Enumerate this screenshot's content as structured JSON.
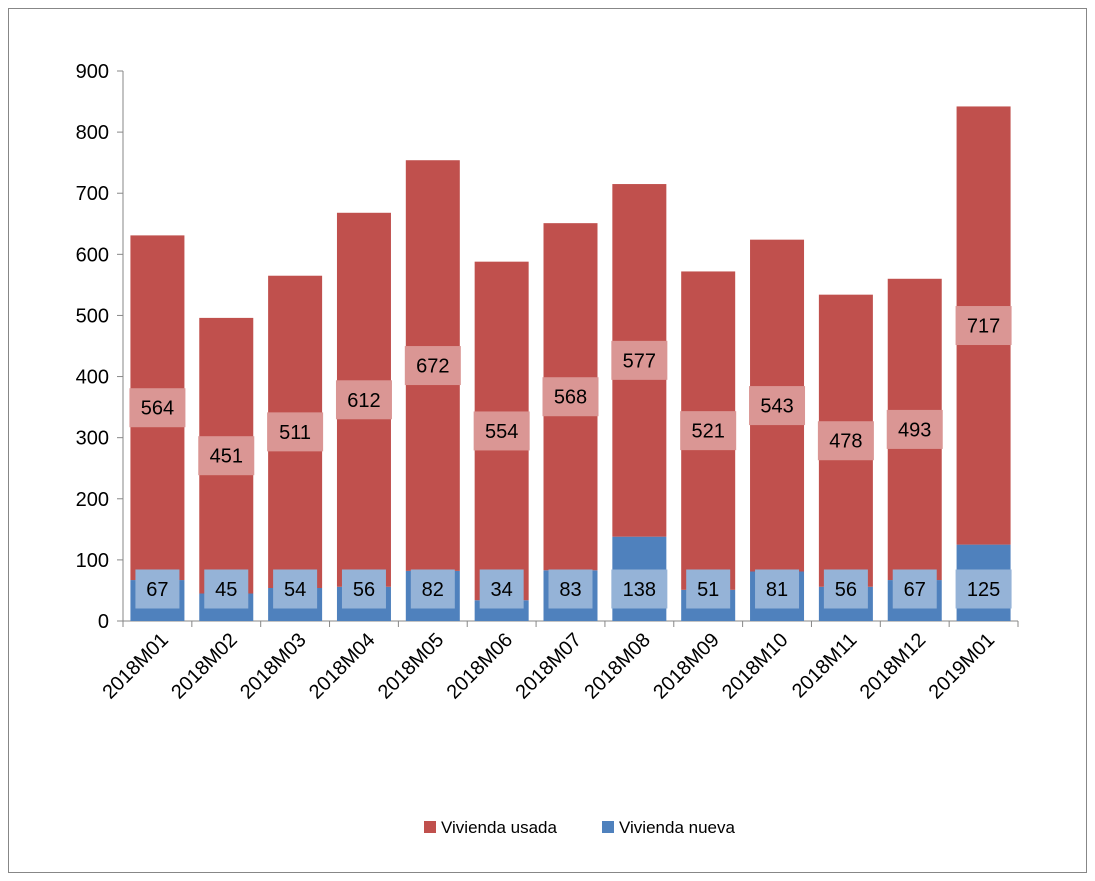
{
  "chart_data": {
    "type": "bar",
    "stacked": true,
    "categories": [
      "2018M01",
      "2018M02",
      "2018M03",
      "2018M04",
      "2018M05",
      "2018M06",
      "2018M07",
      "2018M08",
      "2018M09",
      "2018M10",
      "2018M11",
      "2018M12",
      "2019M01"
    ],
    "series": [
      {
        "name": "Vivienda nueva",
        "color": "#4f81bd",
        "label_color": "#95b3d7",
        "values": [
          67,
          45,
          54,
          56,
          82,
          34,
          83,
          138,
          51,
          81,
          56,
          67,
          125
        ]
      },
      {
        "name": "Vivienda usada",
        "color": "#c0504d",
        "label_color": "#da9694",
        "values": [
          564,
          451,
          511,
          612,
          672,
          554,
          568,
          577,
          521,
          543,
          478,
          493,
          717
        ]
      }
    ],
    "title": "",
    "xlabel": "",
    "ylabel": "",
    "ylim": [
      0,
      900
    ],
    "yticks": [
      0,
      100,
      200,
      300,
      400,
      500,
      600,
      700,
      800,
      900
    ],
    "grid": false,
    "legend_position": "bottom",
    "legend_order": [
      "Vivienda usada",
      "Vivienda nueva"
    ]
  }
}
